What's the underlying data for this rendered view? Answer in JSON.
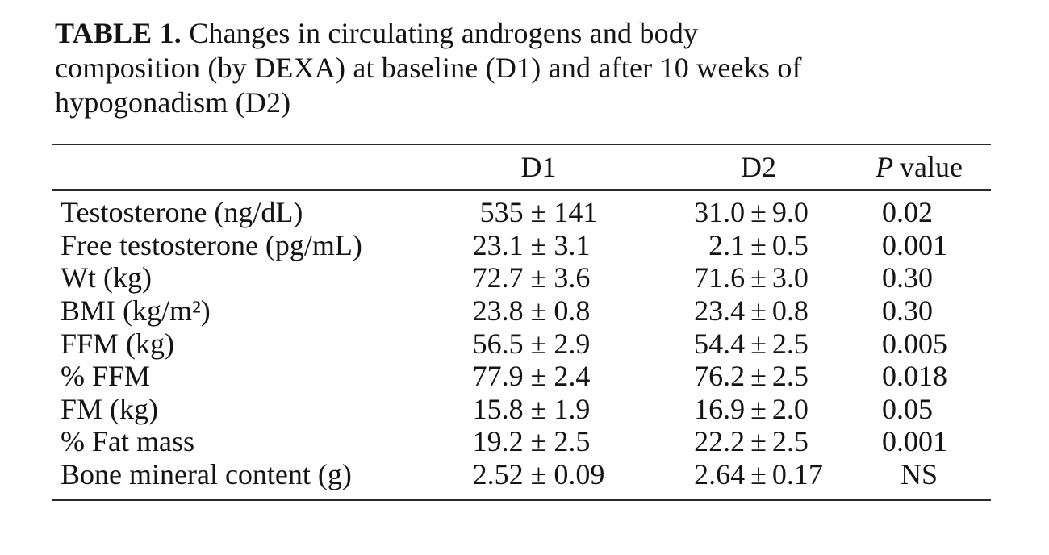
{
  "page": {
    "background": "#ffffff",
    "text_color": "#141414",
    "rule_color": "#2a2a2a"
  },
  "title": {
    "prefix": "TABLE 1.",
    "lines": [
      "Changes in circulating androgens and body",
      "composition (by DEXA) at baseline (D1) and after 10 weeks of",
      "hypogonadism (D2)"
    ]
  },
  "table": {
    "pm": "±",
    "header": {
      "label": "",
      "d1": "D1",
      "d2": "D2",
      "p_italic": "P",
      "p_rest": "value"
    },
    "rows": [
      {
        "label": "Testosterone (ng/dL)",
        "d1_mean": "535",
        "d1_sd": "141",
        "d2_mean": "31.0",
        "d2_sd": "9.0",
        "p": "0.02"
      },
      {
        "label": "Free testosterone (pg/mL)",
        "d1_mean": "23.1",
        "d1_sd": "3.1",
        "d2_mean": "2.1",
        "d2_sd": "0.5",
        "p": "0.001"
      },
      {
        "label": "Wt (kg)",
        "d1_mean": "72.7",
        "d1_sd": "3.6",
        "d2_mean": "71.6",
        "d2_sd": "3.0",
        "p": "0.30"
      },
      {
        "label": "BMI (kg/m²)",
        "d1_mean": "23.8",
        "d1_sd": "0.8",
        "d2_mean": "23.4",
        "d2_sd": "0.8",
        "p": "0.30"
      },
      {
        "label": "FFM (kg)",
        "d1_mean": "56.5",
        "d1_sd": "2.9",
        "d2_mean": "54.4",
        "d2_sd": "2.5",
        "p": "0.005"
      },
      {
        "label": "% FFM",
        "d1_mean": "77.9",
        "d1_sd": "2.4",
        "d2_mean": "76.2",
        "d2_sd": "2.5",
        "p": "0.018"
      },
      {
        "label": "FM (kg)",
        "d1_mean": "15.8",
        "d1_sd": "1.9",
        "d2_mean": "16.9",
        "d2_sd": "2.0",
        "p": "0.05"
      },
      {
        "label": "% Fat mass",
        "d1_mean": "19.2",
        "d1_sd": "2.5",
        "d2_mean": "22.2",
        "d2_sd": "2.5",
        "p": "0.001"
      },
      {
        "label": "Bone mineral content (g)",
        "d1_mean": "2.52",
        "d1_sd": "0.09",
        "d2_mean": "2.64",
        "d2_sd": "0.17",
        "p": "NS"
      }
    ]
  }
}
